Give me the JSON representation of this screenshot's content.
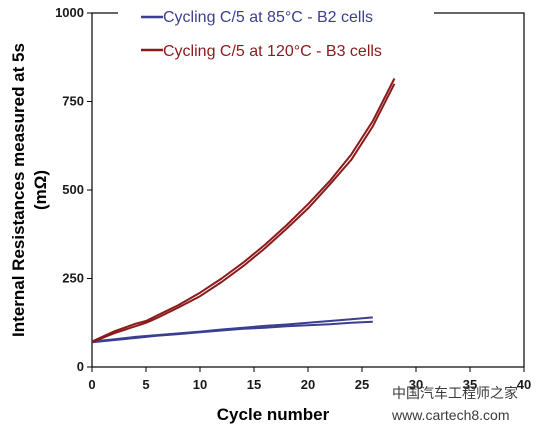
{
  "chart_data": {
    "type": "line",
    "xlabel": "Cycle number",
    "ylabel_lines": [
      "Internal Resistances measured at 5s",
      "(mΩ)"
    ],
    "xlim": [
      0,
      40
    ],
    "ylim": [
      0,
      1000
    ],
    "xticks": [
      0,
      5,
      10,
      15,
      20,
      25,
      30,
      35,
      40
    ],
    "yticks": [
      0,
      250,
      500,
      750,
      1000
    ],
    "grid": false,
    "legend_position": "top",
    "series": [
      {
        "name": "Cycling C/5 at 85°C - B2 cells",
        "color": "#3b3f8f",
        "lines": [
          {
            "x": [
              0,
              2,
              4,
              6,
              8,
              10,
              12,
              14,
              16,
              18,
              20,
              22,
              24,
              26
            ],
            "y": [
              70,
              76,
              82,
              88,
              93,
              98,
              103,
              108,
              111,
              115,
              118,
              121,
              125,
              128
            ]
          },
          {
            "x": [
              0,
              2,
              4,
              6,
              8,
              10,
              12,
              14,
              16,
              18,
              20,
              22,
              24,
              26
            ],
            "y": [
              72,
              78,
              85,
              90,
              95,
              100,
              106,
              111,
              116,
              120,
              125,
              130,
              135,
              140
            ]
          }
        ]
      },
      {
        "name": "Cycling C/5 at 120°C - B3 cells",
        "color": "#8b1a1a",
        "lines": [
          {
            "x": [
              0,
              2,
              4,
              5,
              6,
              8,
              10,
              12,
              14,
              16,
              18,
              20,
              22,
              24,
              26,
              28
            ],
            "y": [
              70,
              95,
              115,
              125,
              138,
              168,
              200,
              240,
              285,
              335,
              390,
              448,
              515,
              585,
              680,
              800
            ]
          },
          {
            "x": [
              0,
              2,
              4,
              5,
              6,
              8,
              10,
              12,
              14,
              16,
              18,
              20,
              22,
              24,
              26,
              28
            ],
            "y": [
              72,
              100,
              122,
              130,
              145,
              175,
              210,
              250,
              295,
              345,
              400,
              460,
              525,
              600,
              695,
              815
            ]
          }
        ]
      }
    ]
  },
  "watermark": "中国汽车工程师之家",
  "watermark_url": "www.cartech8.com"
}
